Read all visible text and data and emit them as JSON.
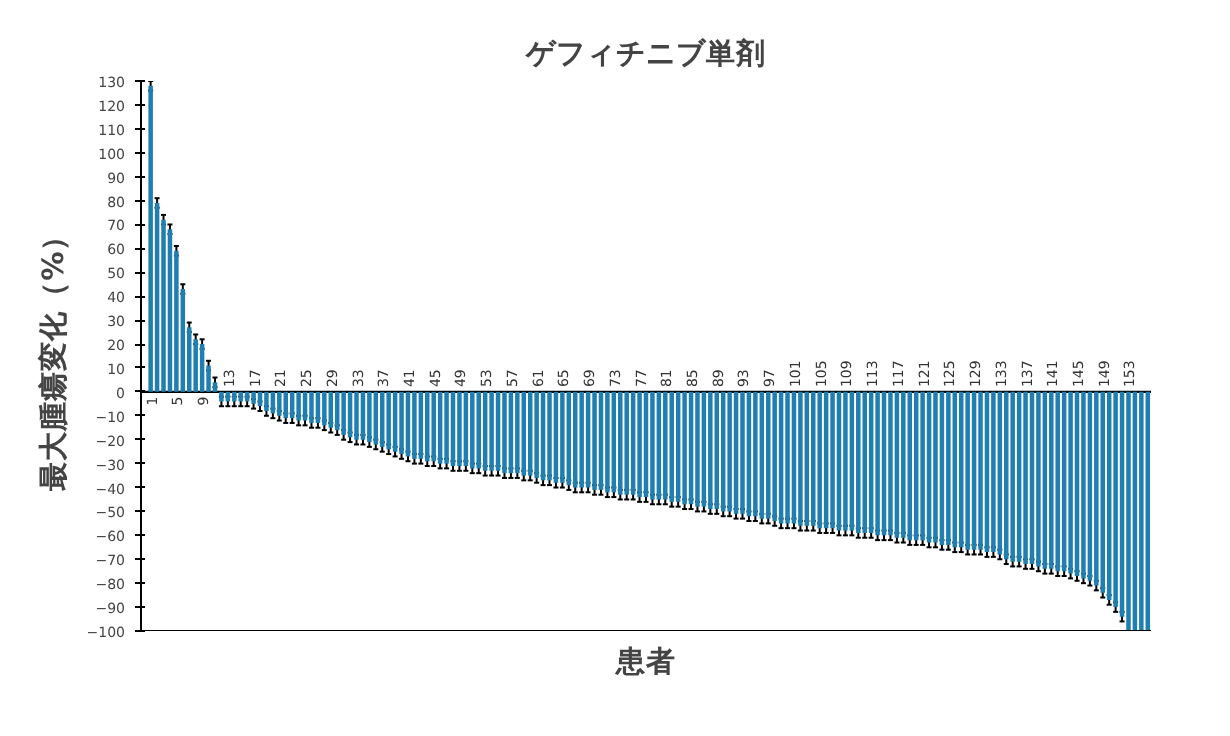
{
  "chart_data": {
    "type": "bar",
    "title": "ゲフィチニブ単剤",
    "xlabel": "患者",
    "ylabel": "最大腫瘍変化（%）",
    "color": "#1f7fb0",
    "categories": [
      "1",
      null,
      null,
      null,
      "5",
      null,
      null,
      null,
      "9",
      null,
      null,
      null,
      "13",
      null,
      null,
      null,
      "17",
      null,
      null,
      null,
      "21",
      null,
      null,
      null,
      "25",
      null,
      null,
      null,
      "29",
      null,
      null,
      null,
      "33",
      null,
      null,
      null,
      "37",
      null,
      null,
      null,
      "41",
      null,
      null,
      null,
      "45",
      null,
      null,
      null,
      "49",
      null,
      null,
      null,
      "53",
      null,
      null,
      null,
      "57",
      null,
      null,
      null,
      "61",
      null,
      null,
      null,
      "65",
      null,
      null,
      null,
      "69",
      null,
      null,
      null,
      "73",
      null,
      null,
      null,
      "77",
      null,
      null,
      null,
      "81",
      null,
      null,
      null,
      "85",
      null,
      null,
      null,
      "89",
      null,
      null,
      null,
      "93",
      null,
      null,
      null,
      "97",
      null,
      null,
      null,
      "101",
      null,
      null,
      null,
      "105",
      null,
      null,
      null,
      "109",
      null,
      null,
      null,
      "113",
      null,
      null,
      null,
      "117",
      null,
      null,
      null,
      "121",
      null,
      null,
      null,
      "125",
      null,
      null,
      null,
      "129",
      null,
      null,
      null,
      "133",
      null,
      null,
      null,
      "137",
      null,
      null,
      null,
      "141",
      null,
      null,
      null,
      "145",
      null,
      null,
      null,
      "149",
      null,
      null,
      null,
      "153",
      null,
      null,
      null
    ],
    "values": [
      128,
      79,
      72,
      68,
      59,
      43,
      27,
      22,
      20,
      11,
      4,
      -4,
      -4,
      -4,
      -4,
      -4,
      -5,
      -6,
      -8,
      -9,
      -10,
      -11,
      -11,
      -12,
      -12,
      -13,
      -13,
      -14,
      -15,
      -16,
      -18,
      -19,
      -20,
      -20,
      -21,
      -22,
      -23,
      -24,
      -25,
      -26,
      -27,
      -28,
      -28,
      -29,
      -29,
      -30,
      -30,
      -31,
      -31,
      -31,
      -32,
      -32,
      -33,
      -33,
      -33,
      -34,
      -34,
      -34,
      -35,
      -35,
      -36,
      -37,
      -37,
      -38,
      -38,
      -39,
      -40,
      -40,
      -40,
      -41,
      -41,
      -42,
      -42,
      -43,
      -43,
      -43,
      -44,
      -44,
      -45,
      -45,
      -45,
      -46,
      -46,
      -47,
      -47,
      -48,
      -48,
      -49,
      -49,
      -50,
      -50,
      -51,
      -51,
      -52,
      -52,
      -53,
      -53,
      -54,
      -55,
      -55,
      -55,
      -56,
      -56,
      -56,
      -57,
      -57,
      -57,
      -58,
      -58,
      -58,
      -59,
      -59,
      -59,
      -60,
      -60,
      -60,
      -61,
      -61,
      -62,
      -62,
      -62,
      -63,
      -63,
      -64,
      -64,
      -65,
      -65,
      -66,
      -66,
      -66,
      -67,
      -67,
      -68,
      -70,
      -71,
      -71,
      -72,
      -72,
      -73,
      -74,
      -74,
      -75,
      -75,
      -76,
      -77,
      -78,
      -79,
      -81,
      -84,
      -87,
      -90,
      -94,
      -100,
      -100,
      -100,
      -100
    ],
    "errors": [
      2,
      2,
      2,
      2,
      2,
      2,
      2,
      2,
      2,
      2,
      2,
      2,
      2,
      2,
      2,
      2,
      2,
      2,
      2,
      2,
      2,
      2,
      2,
      2,
      2,
      2,
      2,
      2,
      2,
      2,
      2,
      2,
      2,
      2,
      2,
      2,
      2,
      2,
      2,
      2,
      2,
      2,
      2,
      2,
      2,
      2,
      2,
      2,
      2,
      2,
      2,
      2,
      2,
      2,
      2,
      2,
      2,
      2,
      2,
      2,
      2,
      2,
      2,
      2,
      2,
      2,
      2,
      2,
      2,
      2,
      2,
      2,
      2,
      2,
      2,
      2,
      2,
      2,
      2,
      2,
      2,
      2,
      2,
      2,
      2,
      2,
      2,
      2,
      2,
      2,
      2,
      2,
      2,
      2,
      2,
      2,
      2,
      2,
      2,
      2,
      2,
      2,
      2,
      2,
      2,
      2,
      2,
      2,
      2,
      2,
      2,
      2,
      2,
      2,
      2,
      2,
      2,
      2,
      2,
      2,
      2,
      2,
      2,
      2,
      2,
      2,
      2,
      2,
      2,
      2,
      2,
      2,
      2,
      2,
      2,
      2,
      2,
      2,
      2,
      2,
      2,
      2,
      2,
      2,
      2,
      2,
      2,
      2,
      2,
      2,
      2,
      2,
      null,
      null,
      null,
      null
    ],
    "ylim": [
      -100,
      130
    ],
    "yticks": [
      -100,
      -90,
      -80,
      -70,
      -60,
      -50,
      -40,
      -30,
      -20,
      -10,
      0,
      10,
      20,
      30,
      40,
      50,
      60,
      70,
      80,
      90,
      100,
      110,
      120,
      130
    ],
    "grid": false
  }
}
